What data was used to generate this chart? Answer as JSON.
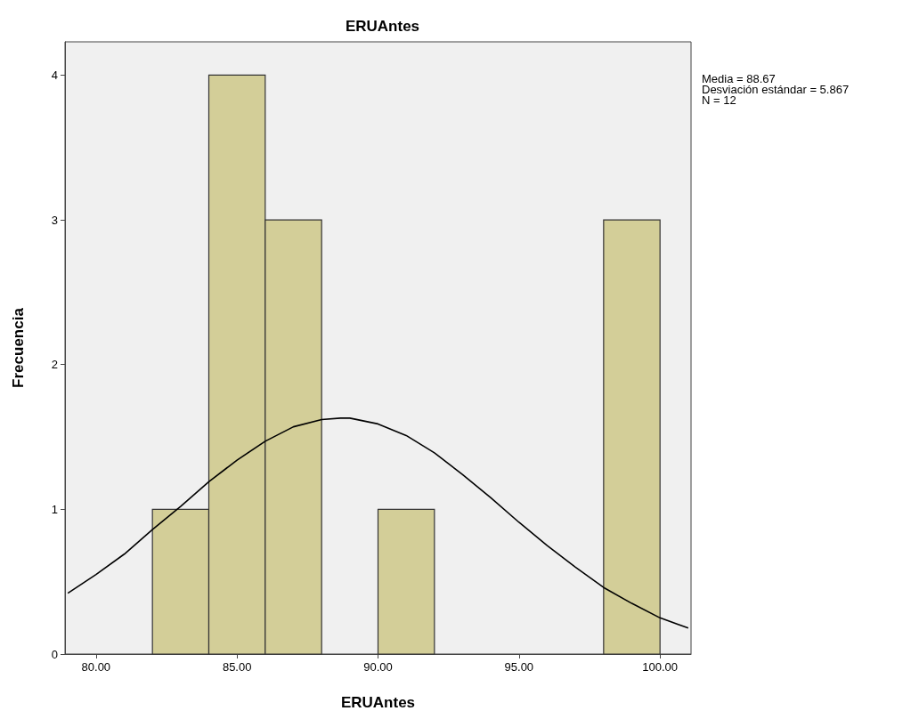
{
  "chart_data": {
    "type": "histogram",
    "title": "ERUAntes",
    "xlabel": "ERUAntes",
    "ylabel": "Frecuencia",
    "bins": [
      82,
      84,
      86,
      88,
      90,
      92,
      94,
      96,
      98,
      100
    ],
    "values": [
      1,
      4,
      3,
      0,
      1,
      0,
      0,
      0,
      3
    ],
    "color": "#d3ce98",
    "series": [
      {
        "type": "line",
        "color": "#000000",
        "x": [
          79,
          80,
          81,
          82,
          83,
          84,
          85,
          86,
          87,
          88,
          88.67,
          89,
          90,
          91,
          92,
          93,
          94,
          95,
          96,
          97,
          98,
          99,
          100,
          101
        ],
        "values": [
          0.42,
          0.55,
          0.69,
          0.86,
          1.02,
          1.19,
          1.34,
          1.47,
          1.57,
          1.62,
          1.63,
          1.63,
          1.59,
          1.51,
          1.39,
          1.24,
          1.08,
          0.91,
          0.75,
          0.6,
          0.46,
          0.35,
          0.25,
          0.18
        ]
      }
    ],
    "xlim": [
      78.9,
      101.1
    ],
    "ylim": [
      0,
      4.23
    ],
    "xticks": [
      {
        "value": 80,
        "label": "80.00"
      },
      {
        "value": 85,
        "label": "85.00"
      },
      {
        "value": 90,
        "label": "90.00"
      },
      {
        "value": 95,
        "label": "95.00"
      },
      {
        "value": 100,
        "label": "100.00"
      }
    ],
    "yticks": [
      0,
      1,
      2,
      3,
      4
    ],
    "grid": false,
    "marker": "none",
    "line_style": "solid",
    "annotations": [
      "Media = 88.67",
      "Desviación estándar = 5.867",
      "N = 12"
    ]
  }
}
